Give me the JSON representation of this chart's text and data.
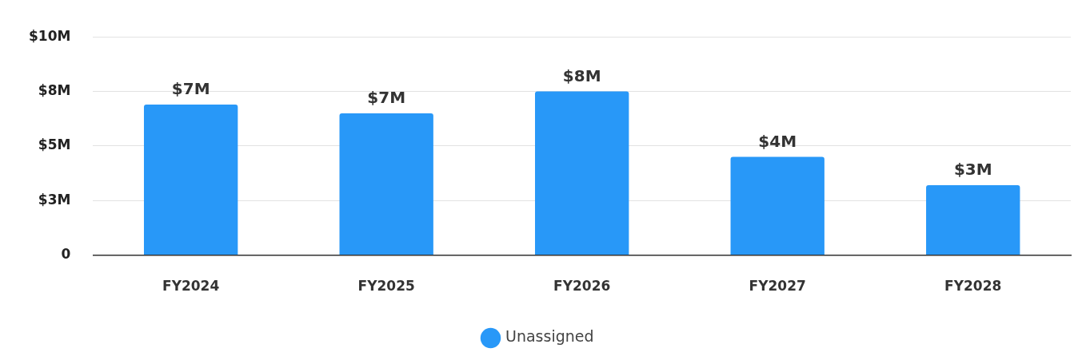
{
  "chart_data": {
    "type": "bar",
    "categories": [
      "FY2024",
      "FY2025",
      "FY2026",
      "FY2027",
      "FY2028"
    ],
    "series": [
      {
        "name": "Unassigned",
        "color": "#2898f8",
        "values": [
          6.9,
          6.5,
          7.5,
          4.5,
          3.2
        ],
        "value_labels": [
          "$7M",
          "$7M",
          "$8M",
          "$4M",
          "$3M"
        ]
      }
    ],
    "ylim": [
      0,
      10
    ],
    "yticks": [
      0,
      {
        "value": 2.5,
        "label": "$3M"
      },
      {
        "value": 5,
        "label": "$5M"
      },
      {
        "value": 7.5,
        "label": "$8M"
      },
      {
        "value": 10,
        "label": "$10M"
      }
    ],
    "grid": "y",
    "legend": "bottom"
  }
}
